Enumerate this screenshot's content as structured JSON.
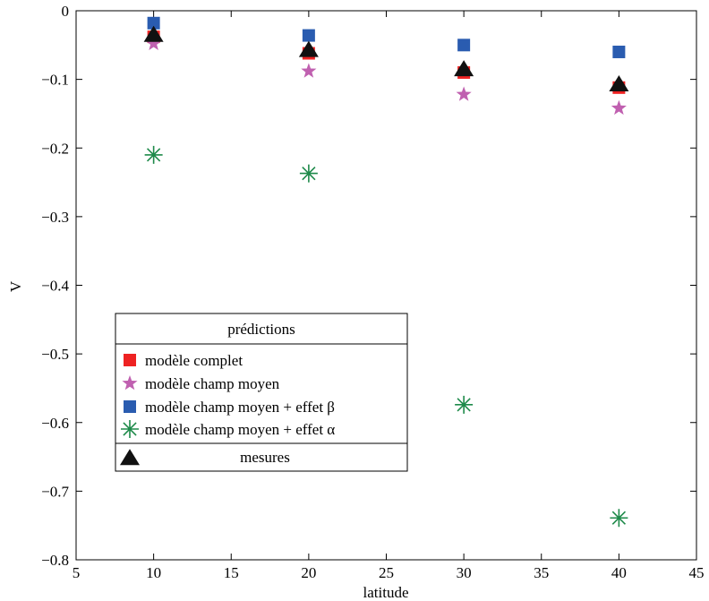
{
  "chart_data": {
    "type": "scatter",
    "title": "",
    "xlabel": "latitude",
    "ylabel": "V",
    "xlim": [
      5,
      45
    ],
    "ylim": [
      -0.8,
      0
    ],
    "xticks": [
      "5",
      "10",
      "15",
      "20",
      "25",
      "30",
      "35",
      "40",
      "45"
    ],
    "yticks": [
      "0",
      "−0.1",
      "−0.2",
      "−0.3",
      "−0.4",
      "−0.5",
      "−0.6",
      "−0.7",
      "−0.8"
    ],
    "grid": false,
    "legend": {
      "title": "prédictions",
      "placement": "lower-left"
    },
    "series": [
      {
        "name": "modèle complet",
        "marker": "square",
        "color": "#ee2222",
        "x": [
          10,
          20,
          30,
          40
        ],
        "y": [
          -0.038,
          -0.062,
          -0.09,
          -0.112
        ]
      },
      {
        "name": "modèle champ moyen",
        "marker": "star",
        "color": "#c060b0",
        "x": [
          10,
          20,
          30,
          40
        ],
        "y": [
          -0.048,
          -0.088,
          -0.122,
          -0.142
        ]
      },
      {
        "name": "modèle champ moyen + effet β",
        "marker": "square",
        "color": "#2a5cb0",
        "x": [
          10,
          20,
          30,
          40
        ],
        "y": [
          -0.018,
          -0.036,
          -0.05,
          -0.06
        ]
      },
      {
        "name": "modèle champ moyen + effet α",
        "marker": "asterisk",
        "color": "#1e8a4a",
        "x": [
          10,
          20,
          30,
          40
        ],
        "y": [
          -0.21,
          -0.237,
          -0.574,
          -0.739
        ]
      },
      {
        "name": "mesures",
        "marker": "triangle",
        "color": "#111111",
        "x": [
          10,
          20,
          30,
          40
        ],
        "y": [
          -0.036,
          -0.058,
          -0.086,
          -0.108
        ]
      }
    ]
  }
}
